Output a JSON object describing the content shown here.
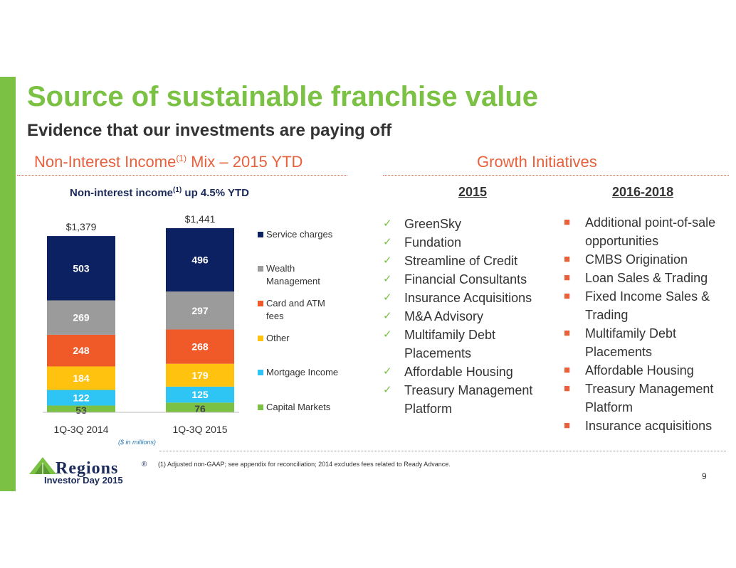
{
  "title": "Source of sustainable franchise value",
  "subtitle": "Evidence that our investments are paying off",
  "left_section": {
    "heading_pre": "Non-Interest Income",
    "heading_sup": "(1)",
    "heading_post": " Mix – 2015 YTD",
    "chart_subtitle_pre": "Non-interest income",
    "chart_subtitle_sup": "(1)",
    "chart_subtitle_post": " up 4.5% YTD",
    "units_note": "($ in millions)"
  },
  "chart_data": {
    "type": "bar",
    "stacked": true,
    "categories": [
      "1Q-3Q 2014",
      "1Q-3Q 2015"
    ],
    "totals": [
      "$1,379",
      "$1,441"
    ],
    "series": [
      {
        "name": "Capital Markets",
        "values": [
          53,
          76
        ],
        "color": "#7bc143"
      },
      {
        "name": "Mortgage Income",
        "values": [
          122,
          125
        ],
        "color": "#2ec4f3"
      },
      {
        "name": "Other",
        "values": [
          184,
          179
        ],
        "color": "#ffc20e"
      },
      {
        "name": "Card and ATM fees",
        "values": [
          248,
          268
        ],
        "color": "#f05a28"
      },
      {
        "name": "Wealth Management",
        "values": [
          269,
          297
        ],
        "color": "#9b9b9b"
      },
      {
        "name": "Service charges",
        "values": [
          503,
          496
        ],
        "color": "#0c2161"
      }
    ],
    "legend_position": "right"
  },
  "right_section": {
    "heading": "Growth Initiatives",
    "col1_heading": "2015",
    "col1_items": [
      "GreenSky",
      "Fundation",
      "Streamline of Credit",
      "Financial Consultants",
      "Insurance Acquisitions",
      "M&A Advisory",
      "Multifamily Debt Placements",
      "Affordable Housing",
      "Treasury Management Platform"
    ],
    "col2_heading": "2016-2018",
    "col2_items": [
      "Additional point-of-sale opportunities",
      "CMBS Origination",
      "Loan Sales & Trading",
      "Fixed Income Sales & Trading",
      "Multifamily Debt Placements",
      "Affordable Housing",
      "Treasury Management Platform",
      "Insurance acquisitions"
    ]
  },
  "footer": {
    "logo_text": "Regions",
    "logo_reg": "®",
    "tagline": "Investor Day 2015",
    "footnote": "(1)   Adjusted non-GAAP; see appendix for reconciliation; 2014 excludes fees related to Ready Advance.",
    "page_number": "9"
  },
  "colors": {
    "accent_green": "#7bc143",
    "accent_orange": "#e8603c",
    "navy": "#1b2a5b"
  },
  "icons": {
    "check": "checkmark-icon",
    "bullet": "square-bullet-icon"
  }
}
